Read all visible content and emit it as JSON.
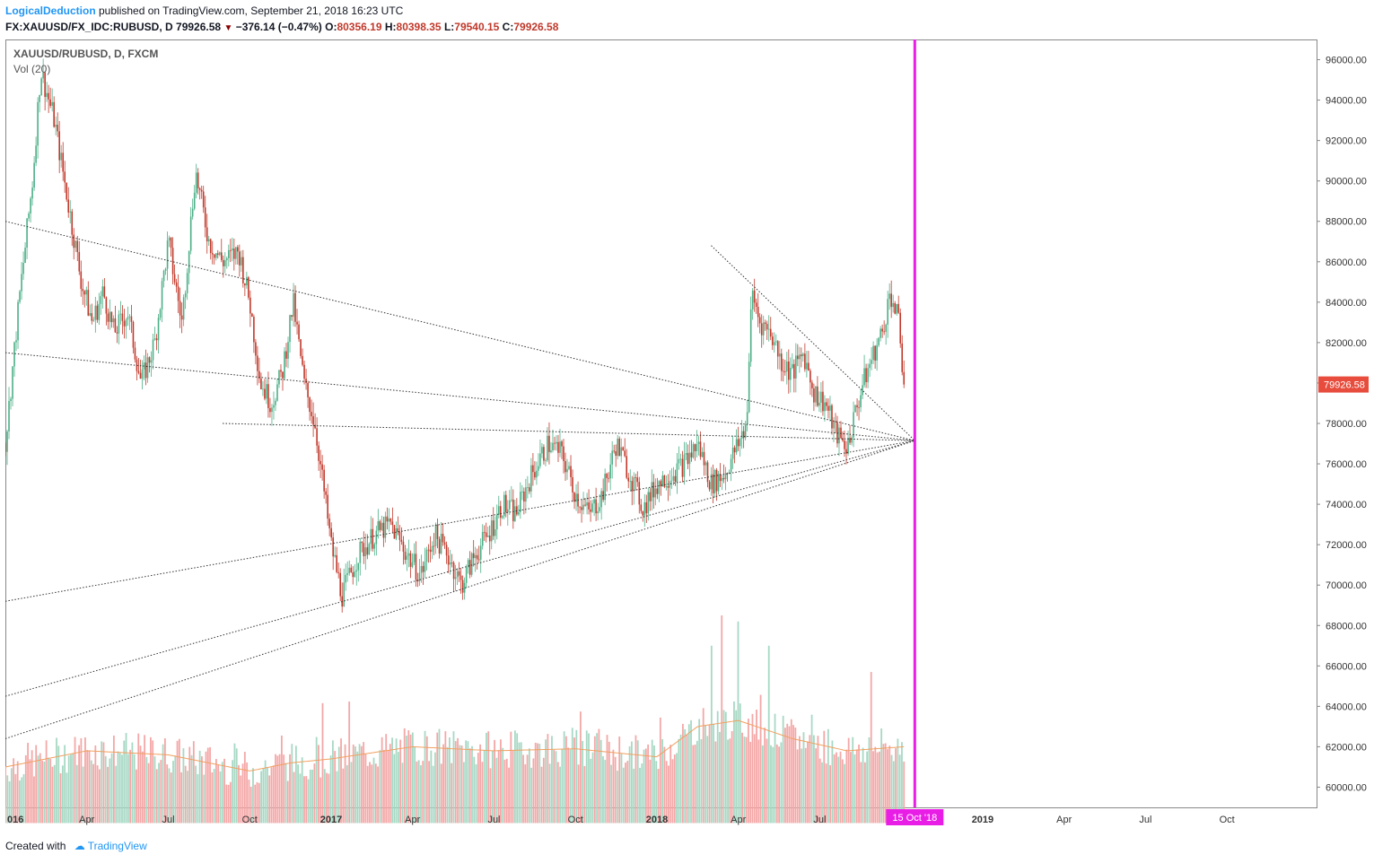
{
  "header": {
    "author": "LogicalDeduction",
    "published_text": " published on TradingView.com, September 21, 2018 16:23 UTC",
    "symbol": "FX:XAUUSD/FX_IDC:RUBUSD, D",
    "last": "79926.58",
    "arrow": "▼",
    "change": "−376.14 (−0.47%)",
    "o_label": "O:",
    "o": "80356.19",
    "h_label": "H:",
    "h": "80398.35",
    "l_label": "L:",
    "l": "79540.15",
    "c_label": "C:",
    "c": "79926.58"
  },
  "legend": {
    "title": "XAUUSD/RUBUSD, D, FXCM",
    "volume": "Vol (20)"
  },
  "footer": {
    "created_with": "Created with",
    "brand": "TradingView"
  },
  "colors": {
    "up": "#4caf87",
    "down": "#c0392b",
    "vol_up": "#a7d8c4",
    "vol_down": "#f4a7a7",
    "vol_ma": "#f0a060",
    "marker": "#e91ee6",
    "price_tag": "#e74c3c",
    "trendline": "#333333",
    "axis_text": "#333333"
  },
  "chart_data": {
    "type": "candlestick",
    "title": "XAUUSD/RUBUSD, D, FXCM",
    "x_axis_labels": [
      "016",
      "Apr",
      "Jul",
      "Oct",
      "2017",
      "Apr",
      "Jul",
      "Oct",
      "2018",
      "Apr",
      "Jul",
      "2019",
      "Apr",
      "Jul",
      "Oct"
    ],
    "x_axis_months": [
      0,
      3,
      6,
      9,
      12,
      15,
      18,
      21,
      24,
      27,
      30,
      36,
      39,
      42,
      45
    ],
    "y_ticks": [
      "60000.00",
      "62000.00",
      "64000.00",
      "66000.00",
      "68000.00",
      "70000.00",
      "72000.00",
      "74000.00",
      "76000.00",
      "78000.00",
      "80000.00",
      "82000.00",
      "84000.00",
      "86000.00",
      "88000.00",
      "90000.00",
      "92000.00",
      "94000.00",
      "96000.00"
    ],
    "ylim": [
      59000,
      97000
    ],
    "x_range_months": [
      0,
      48.3
    ],
    "last_price": "79926.58",
    "marker_date_label": "15 Oct '18",
    "marker_month": 33.5,
    "price_path": [
      [
        0,
        77000
      ],
      [
        0.5,
        84000
      ],
      [
        1.0,
        90000
      ],
      [
        1.3,
        95500
      ],
      [
        1.8,
        93000
      ],
      [
        2.3,
        89000
      ],
      [
        2.8,
        85000
      ],
      [
        3.2,
        83000
      ],
      [
        3.6,
        84500
      ],
      [
        4.0,
        82500
      ],
      [
        4.5,
        83500
      ],
      [
        5.0,
        80000
      ],
      [
        5.5,
        82000
      ],
      [
        6.0,
        87000
      ],
      [
        6.5,
        83000
      ],
      [
        7.0,
        90500
      ],
      [
        7.5,
        87000
      ],
      [
        8.0,
        86000
      ],
      [
        8.6,
        86500
      ],
      [
        9.0,
        84000
      ],
      [
        9.4,
        80000
      ],
      [
        9.8,
        79000
      ],
      [
        10.2,
        80500
      ],
      [
        10.6,
        84000
      ],
      [
        11.0,
        80000
      ],
      [
        11.4,
        78000
      ],
      [
        11.7,
        75000
      ],
      [
        12.0,
        72000
      ],
      [
        12.4,
        69500
      ],
      [
        13.0,
        71500
      ],
      [
        13.6,
        72500
      ],
      [
        14.2,
        73000
      ],
      [
        14.8,
        71500
      ],
      [
        15.3,
        70500
      ],
      [
        15.8,
        72500
      ],
      [
        16.3,
        71500
      ],
      [
        16.8,
        70000
      ],
      [
        17.3,
        71500
      ],
      [
        17.8,
        72500
      ],
      [
        18.3,
        74000
      ],
      [
        18.8,
        73500
      ],
      [
        19.4,
        75500
      ],
      [
        20.0,
        77000
      ],
      [
        20.5,
        76500
      ],
      [
        21.0,
        74500
      ],
      [
        21.5,
        73500
      ],
      [
        22.0,
        74500
      ],
      [
        22.5,
        77000
      ],
      [
        23.0,
        75500
      ],
      [
        23.5,
        73800
      ],
      [
        24.0,
        75000
      ],
      [
        24.5,
        75500
      ],
      [
        25.0,
        76000
      ],
      [
        25.5,
        77000
      ],
      [
        26.0,
        75000
      ],
      [
        26.5,
        75500
      ],
      [
        27.0,
        77000
      ],
      [
        27.3,
        78000
      ],
      [
        27.5,
        84500
      ],
      [
        27.8,
        83000
      ],
      [
        28.2,
        82500
      ],
      [
        28.6,
        81000
      ],
      [
        29.0,
        80500
      ],
      [
        29.4,
        81500
      ],
      [
        29.8,
        79500
      ],
      [
        30.2,
        79000
      ],
      [
        30.6,
        77500
      ],
      [
        31.0,
        76800
      ],
      [
        31.3,
        78500
      ],
      [
        31.6,
        80000
      ],
      [
        32.0,
        81500
      ],
      [
        32.3,
        82500
      ],
      [
        32.6,
        84500
      ],
      [
        32.9,
        83000
      ],
      [
        33.1,
        79926.58
      ]
    ],
    "volume_profile": [
      [
        0,
        61000
      ],
      [
        3,
        61800
      ],
      [
        6,
        61600
      ],
      [
        9,
        60800
      ],
      [
        10.5,
        61200
      ],
      [
        12,
        61400
      ],
      [
        15,
        62000
      ],
      [
        18,
        61800
      ],
      [
        21,
        61900
      ],
      [
        24,
        61500
      ],
      [
        25.5,
        63000
      ],
      [
        27,
        63300
      ],
      [
        29,
        62400
      ],
      [
        31,
        61800
      ],
      [
        33.1,
        62000
      ]
    ],
    "volume_spikes": [
      [
        26.4,
        68500
      ],
      [
        26.0,
        67000
      ],
      [
        27.0,
        68200
      ],
      [
        28.1,
        67000
      ],
      [
        31.9,
        65700
      ]
    ],
    "trendlines": [
      {
        "from": [
          0,
          88000
        ],
        "to": [
          33.5,
          77150
        ]
      },
      {
        "from": [
          0,
          81500
        ],
        "to": [
          33.5,
          77150
        ]
      },
      {
        "from": [
          8.0,
          78000
        ],
        "to": [
          33.5,
          77150
        ]
      },
      {
        "from": [
          0,
          69200
        ],
        "to": [
          33.5,
          77150
        ]
      },
      {
        "from": [
          0,
          64500
        ],
        "to": [
          33.5,
          77150
        ]
      },
      {
        "from": [
          0,
          62400
        ],
        "to": [
          33.5,
          77150
        ]
      },
      {
        "from": [
          26.0,
          86800
        ],
        "to": [
          33.5,
          77150
        ]
      }
    ]
  }
}
